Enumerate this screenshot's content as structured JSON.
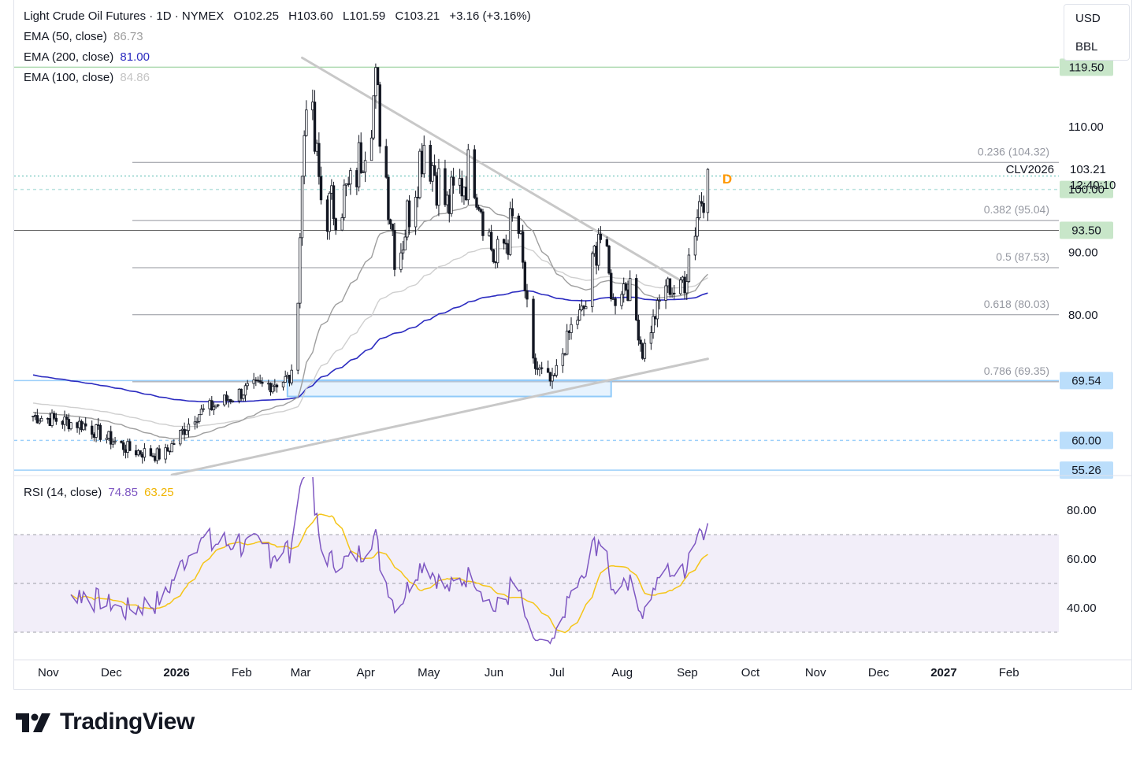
{
  "header": {
    "symbol_title": "Light Crude Oil Futures · 1D · NYMEX",
    "open": "O102.25",
    "high": "H103.60",
    "low": "L101.59",
    "close": "C103.21",
    "change": "+3.16 (+3.16%)"
  },
  "indicators": {
    "ema50": {
      "label": "EMA (50, close)",
      "value": "86.73",
      "color": "#9e9e9e"
    },
    "ema200": {
      "label": "EMA (200, close)",
      "value": "81.00",
      "color": "#2b2bc0"
    },
    "ema100": {
      "label": "EMA (100, close)",
      "value": "84.86",
      "color": "#cfcfcf"
    },
    "rsi": {
      "label": "RSI (14, close)",
      "value": "74.85",
      "ma_value": "63.25",
      "color": "#7e57c2",
      "ma_color": "#f5c518"
    }
  },
  "units": {
    "currency": "USD",
    "unit": "BBL"
  },
  "price_axis": {
    "ticks": [
      "110.00",
      "90.00",
      "80.00"
    ],
    "last_price": "103.21",
    "countdown": "12:40:10",
    "contract": "CLV2026",
    "interval_badge": "D"
  },
  "price_levels": [
    {
      "label": "119.50",
      "value": 119.5,
      "bg": "#c8e6c9",
      "line": "#a5d6a7",
      "style": "solid"
    },
    {
      "label": "100.00",
      "value": 100.0,
      "bg": "#c8e6c9",
      "line": "#b2dfdb",
      "style": "dashed"
    },
    {
      "label": "93.50",
      "value": 93.5,
      "bg": "#c8e6c9",
      "line": "#444444",
      "style": "solid"
    },
    {
      "label": "69.54",
      "value": 69.54,
      "bg": "#bbdefb",
      "line": "#90caf9",
      "style": "solid"
    },
    {
      "label": "60.00",
      "value": 60.0,
      "bg": "#bbdefb",
      "line": "#90caf9",
      "style": "dashed"
    },
    {
      "label": "55.26",
      "value": 55.26,
      "bg": "#bbdefb",
      "line": "#90caf9",
      "style": "solid"
    }
  ],
  "fibonacci": [
    {
      "label": "0.236 (104.32)",
      "value": 104.32
    },
    {
      "label": "0.382 (95.04)",
      "value": 95.04
    },
    {
      "label": "0.5 (87.53)",
      "value": 87.53
    },
    {
      "label": "0.618 (80.03)",
      "value": 80.03
    },
    {
      "label": "0.786 (69.35)",
      "value": 69.35
    }
  ],
  "rsi_axis": {
    "ticks": [
      "80.00",
      "60.00",
      "40.00"
    ]
  },
  "time_axis": {
    "labels": [
      "Nov",
      "Dec",
      "2026",
      "Feb",
      "Mar",
      "Apr",
      "May",
      "Jun",
      "Jul",
      "Aug",
      "Sep",
      "Oct",
      "Nov",
      "Dec",
      "2027",
      "Feb"
    ]
  },
  "branding": {
    "name": "TradingView"
  },
  "chart_data": {
    "type": "candlestick",
    "price_range": [
      54,
      123
    ],
    "rsi_range": [
      20,
      95
    ],
    "anchors": [
      [
        "2025-10-25",
        64.0
      ],
      [
        "2025-11-20",
        62.5
      ],
      [
        "2025-12-12",
        58.5
      ],
      [
        "2025-12-28",
        57.5
      ],
      [
        "2026-01-12",
        64.0
      ],
      [
        "2026-02-05",
        68.0
      ],
      [
        "2026-02-28",
        70.0
      ],
      [
        "2026-03-06",
        117.0
      ],
      [
        "2026-03-14",
        96.0
      ],
      [
        "2026-03-28",
        100.0
      ],
      [
        "2026-04-08",
        116.0
      ],
      [
        "2026-04-18",
        88.0
      ],
      [
        "2026-05-01",
        108.0
      ],
      [
        "2026-05-12",
        97.0
      ],
      [
        "2026-05-24",
        104.0
      ],
      [
        "2026-06-04",
        88.0
      ],
      [
        "2026-06-14",
        96.0
      ],
      [
        "2026-06-22",
        72.0
      ],
      [
        "2026-07-01",
        69.0
      ],
      [
        "2026-07-10",
        78.0
      ],
      [
        "2026-07-18",
        82.0
      ],
      [
        "2026-07-23",
        94.0
      ],
      [
        "2026-07-30",
        82.0
      ],
      [
        "2026-08-06",
        86.0
      ],
      [
        "2026-08-13",
        74.0
      ],
      [
        "2026-08-24",
        85.0
      ],
      [
        "2026-08-30",
        83.0
      ],
      [
        "2026-09-03",
        88.0
      ],
      [
        "2026-09-09",
        98.0
      ],
      [
        "2026-09-13",
        103.21
      ]
    ],
    "triangle_upper": [
      [
        "2026-03-04",
        121.0
      ],
      [
        "2026-08-31",
        85.5
      ]
    ],
    "triangle_lower": [
      [
        "2026-01-01",
        54.5
      ],
      [
        "2026-09-13",
        73.0
      ]
    ],
    "demand_zone": {
      "x": [
        "2026-02-25",
        "2026-07-29"
      ],
      "y": [
        67.0,
        69.6
      ]
    },
    "rsi_overbought": 70,
    "rsi_oversold": 30,
    "rsi_mid": 50
  }
}
